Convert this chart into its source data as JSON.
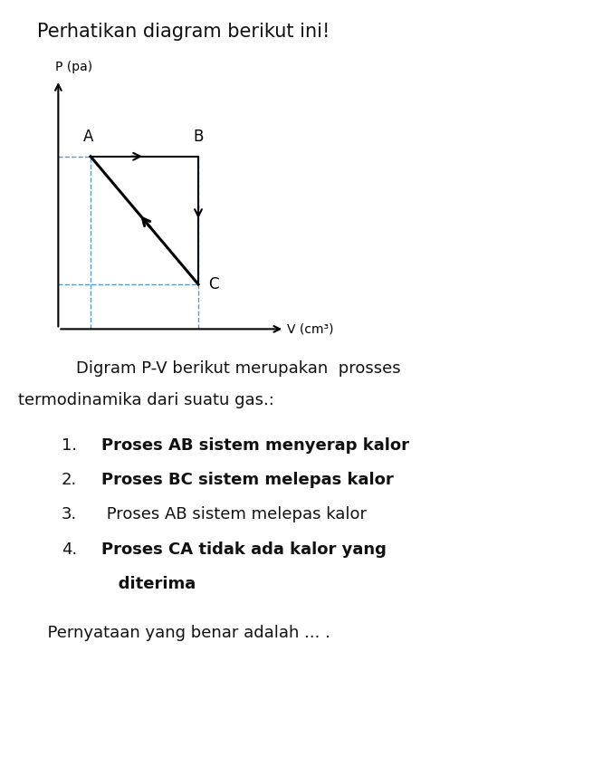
{
  "title": "Perhatikan diagram berikut ini!",
  "p_label": "P (pa)",
  "v_label": "V (cm³)",
  "point_A": [
    1.0,
    3.0
  ],
  "point_B": [
    3.0,
    3.0
  ],
  "point_C": [
    3.0,
    1.0
  ],
  "description_line1": "    Digram P-V berikut merupakan  prosses",
  "description_line2": "termodinamika dari suatu gas.:",
  "items": [
    {
      "num": "1.",
      "bold": true,
      "text": "Proses AB sistem menyerap kalor"
    },
    {
      "num": "2.",
      "bold": true,
      "text": "Proses BC sistem melepas kalor"
    },
    {
      "num": "3.",
      "bold": false,
      "text": " Proses AB sistem melepas kalor"
    },
    {
      "num": "4.",
      "bold": true,
      "text": "Proses CA tidak ada kalor yang"
    },
    {
      "num": "",
      "bold": true,
      "text": "   diterima"
    }
  ],
  "conclusion": "  Pernyataan yang benar adalah ... .",
  "bg_color": "#ffffff",
  "dashed_color": "#5599cc",
  "label_A": "A",
  "label_B": "B",
  "label_C": "C"
}
